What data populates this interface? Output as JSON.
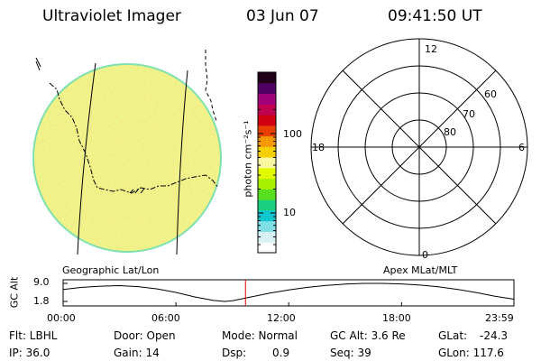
{
  "header": {
    "instrument": "Ultraviolet Imager",
    "date": "03 Jun 07",
    "time": "09:41:50 UT"
  },
  "colorbar": {
    "unit_label": "photon cm⁻²s⁻¹",
    "scale": "log",
    "ticks": [
      "100",
      "10"
    ],
    "colors": [
      "#ffffff",
      "#d9f0f5",
      "#7fe0e8",
      "#10c8d0",
      "#18d080",
      "#58e020",
      "#a8f000",
      "#e0f800",
      "#f8f8a0",
      "#f8d000",
      "#f89800",
      "#e84000",
      "#d00010",
      "#c00050",
      "#a00078",
      "#500060",
      "#200018"
    ]
  },
  "image_panel": {
    "label": "Geographic Lat/Lon",
    "fill_color": "#f0f28a",
    "rim_color": "#7fe0b0"
  },
  "polar_panel": {
    "label": "Apex MLat/MLT",
    "mlt_labels": {
      "top": "12",
      "left": "18",
      "right": "6",
      "bottom": "0"
    },
    "lat_labels": [
      "60",
      "70",
      "80"
    ]
  },
  "chart_data": {
    "type": "line",
    "title": "",
    "ylabel": "GC Alt",
    "yticks": [
      "9.0",
      "1.8"
    ],
    "ylim": [
      1.8,
      9.0
    ],
    "xticks": [
      "00:00",
      "06:00",
      "12:00",
      "18:00",
      "23:59"
    ],
    "x_hours": [
      0,
      1,
      2,
      3,
      4,
      5,
      6,
      7,
      8,
      8.6,
      9,
      10,
      11,
      12,
      13,
      14,
      15,
      16,
      17,
      18,
      19,
      20,
      21,
      22,
      23,
      23.98
    ],
    "series": [
      {
        "values": [
          6.6,
          7.4,
          7.9,
          8.1,
          7.7,
          6.8,
          5.4,
          3.6,
          2.2,
          1.8,
          2.1,
          3.6,
          5.1,
          6.4,
          7.4,
          8.2,
          8.7,
          9.0,
          9.0,
          8.8,
          8.3,
          7.6,
          6.6,
          5.3,
          3.8,
          2.7
        ],
        "color": "#000000"
      }
    ],
    "current_time_hours": 9.7,
    "current_time_color": "#e00000"
  },
  "info": {
    "filter": "Flt: LBHL",
    "ip": "IP: 36.0",
    "door": "Door: Open",
    "gain": "Gain: 14",
    "mode": "Mode: Normal",
    "dsp_label": "Dsp:",
    "dsp_value": "0.9",
    "gc_alt": "GC Alt: 3.6 Re",
    "seq": "Seq: 39",
    "glat_label": "GLat:",
    "glat_value": "-24.3",
    "glon": "GLon: 117.6"
  }
}
